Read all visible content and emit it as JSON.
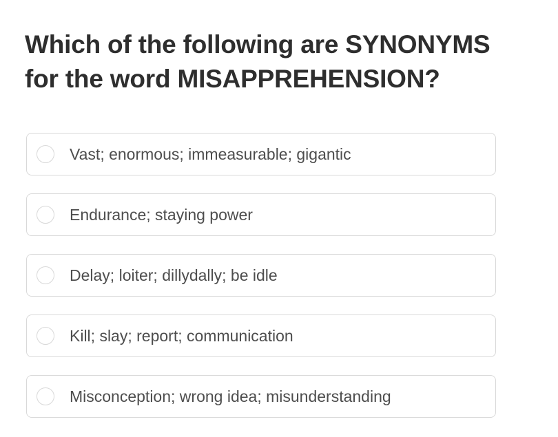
{
  "question": {
    "title_lines": [
      "Which of the following are SYNONYMS",
      "for the word MISAPPREHENSION?"
    ]
  },
  "options": [
    {
      "label": "Vast; enormous; immeasurable; gigantic"
    },
    {
      "label": "Endurance; staying power"
    },
    {
      "label": "Delay; loiter; dillydally; be idle"
    },
    {
      "label": "Kill; slay; report; communication"
    },
    {
      "label": "Misconception; wrong idea; misunderstanding"
    }
  ]
}
